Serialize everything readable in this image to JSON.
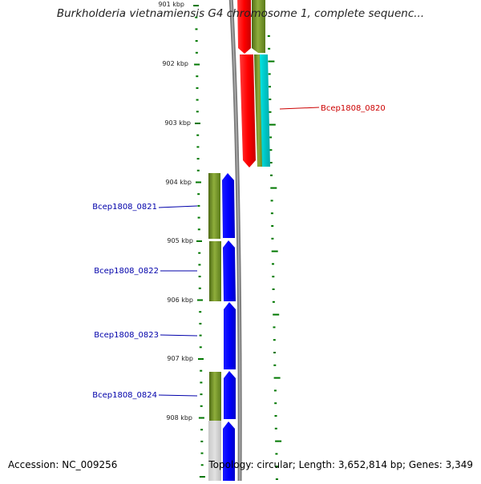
{
  "title": "Burkholderia vietnamiensis G4 chromosome 1, complete sequenc...",
  "footer": {
    "accession": "Accession: NC_009256",
    "summary": "Topology: circular; Length: 3,652,814 bp; Genes: 3,349"
  },
  "ticks": [
    "901 kbp",
    "902 kbp",
    "903 kbp",
    "904 kbp",
    "905 kbp",
    "906 kbp",
    "907 kbp",
    "908 kbp"
  ],
  "genes": [
    {
      "name": "Bcep1808_0820",
      "strand": "reverse"
    },
    {
      "name": "Bcep1808_0821",
      "strand": "forward"
    },
    {
      "name": "Bcep1808_0822",
      "strand": "forward"
    },
    {
      "name": "Bcep1808_0823",
      "strand": "forward"
    },
    {
      "name": "Bcep1808_0824",
      "strand": "forward"
    }
  ],
  "colors": {
    "forward_gene": "#0000ff",
    "reverse_gene": "#ff0000",
    "cds_feature": "#6b8e23",
    "cyan_feature": "#00cccc",
    "backbone": "#808080",
    "ticks": "#007700",
    "forward_label": "#0000aa",
    "reverse_label": "#cc0000"
  }
}
